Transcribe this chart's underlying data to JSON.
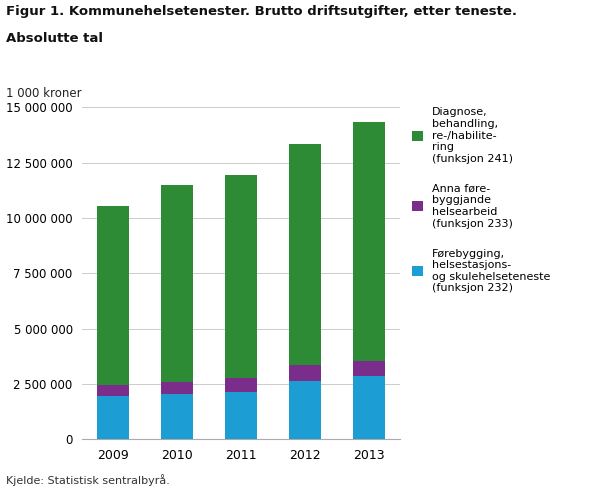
{
  "title_line1": "Figur 1. Kommunehelsetenester. Brutto driftsutgifter, etter teneste.",
  "title_line2": "Absolutte tal",
  "ylabel": "1 000 kroner",
  "source": "Kjelde: Statistisk sentralbyrå.",
  "years": [
    "2009",
    "2010",
    "2011",
    "2012",
    "2013"
  ],
  "funksjon232": [
    1950000,
    2050000,
    2150000,
    2650000,
    2850000
  ],
  "funksjon233": [
    500000,
    550000,
    600000,
    700000,
    700000
  ],
  "funksjon241": [
    8100000,
    8900000,
    9200000,
    10000000,
    10800000
  ],
  "color_232": "#1C9ED4",
  "color_233": "#7B2D8B",
  "color_241": "#2E8B35",
  "legend_241": "Diagnose,\nbehandling,\nre-/habilite-\nring\n(funksjon 241)",
  "legend_233": "Anna føre-\nbyggjande\nhelsearbeid\n(funksjon 233)",
  "legend_232": "Førebygging,\nhelsestasjons-\nog skulehelseteneste\n(funksjon 232)",
  "ylim": [
    0,
    15000000
  ],
  "yticks": [
    0,
    2500000,
    5000000,
    7500000,
    10000000,
    12500000,
    15000000
  ],
  "background_color": "#ffffff",
  "grid_color": "#cccccc"
}
